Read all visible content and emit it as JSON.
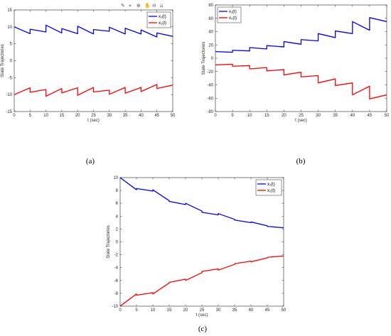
{
  "chart_data": [
    {
      "type": "line",
      "panel_label": "(a)",
      "xlabel": "t (sec)",
      "ylabel": "State Trajectories",
      "xlim": [
        0,
        50
      ],
      "ylim": [
        -15,
        15
      ],
      "xticks": [
        0,
        5,
        10,
        15,
        20,
        25,
        30,
        35,
        40,
        45,
        50
      ],
      "yticks": [
        -15,
        -10,
        -5,
        0,
        5,
        10,
        15
      ],
      "grid": false,
      "legend_position": "top-right",
      "series": [
        {
          "name": "x₁(t)",
          "color": "#0000ff",
          "x": [
            0,
            5,
            5,
            10,
            10,
            15,
            15,
            20,
            20,
            25,
            25,
            30,
            30,
            35,
            35,
            40,
            40,
            45,
            45,
            50
          ],
          "y": [
            10,
            8,
            9.3,
            8.5,
            10.5,
            8.2,
            9.5,
            8,
            10.2,
            7.9,
            9.2,
            8.7,
            9.9,
            7.9,
            9.6,
            7.9,
            9.1,
            7,
            8.2,
            7.2
          ]
        },
        {
          "name": "x₂(t)",
          "color": "#ff0000",
          "x": [
            0,
            5,
            5,
            10,
            10,
            15,
            15,
            20,
            20,
            25,
            25,
            30,
            30,
            35,
            35,
            40,
            40,
            45,
            45,
            50
          ],
          "y": [
            -10,
            -8,
            -9.3,
            -8.5,
            -10.5,
            -8.2,
            -9.5,
            -8,
            -10.2,
            -7.9,
            -9.2,
            -8.7,
            -9.9,
            -7.9,
            -9.6,
            -7.9,
            -9.1,
            -7,
            -8.2,
            -7.2
          ]
        }
      ]
    },
    {
      "type": "line",
      "panel_label": "(b)",
      "xlabel": "t (sec)",
      "ylabel": "State Trajectories",
      "xlim": [
        0,
        50
      ],
      "ylim": [
        -80,
        80
      ],
      "xticks": [
        0,
        5,
        10,
        15,
        20,
        25,
        30,
        35,
        40,
        45,
        50
      ],
      "yticks": [
        -80,
        -60,
        -40,
        -20,
        0,
        20,
        40,
        60,
        80
      ],
      "grid": false,
      "legend_position": "top-left",
      "series": [
        {
          "name": "x₁(t)",
          "color": "#0000ff",
          "x": [
            0,
            5,
            5,
            10,
            10,
            15,
            15,
            20,
            20,
            25,
            25,
            30,
            30,
            35,
            35,
            40,
            40,
            45,
            45,
            50
          ],
          "y": [
            10,
            9,
            12,
            11,
            16,
            14,
            19,
            17,
            25,
            21,
            28,
            26,
            37,
            31,
            41,
            37,
            55,
            42,
            61,
            55
          ]
        },
        {
          "name": "x₂(t)",
          "color": "#ff0000",
          "x": [
            0,
            5,
            5,
            10,
            10,
            15,
            15,
            20,
            20,
            25,
            25,
            30,
            30,
            35,
            35,
            40,
            40,
            45,
            45,
            50
          ],
          "y": [
            -10,
            -9,
            -12,
            -11,
            -16,
            -14,
            -19,
            -17,
            -25,
            -21,
            -28,
            -26,
            -37,
            -31,
            -41,
            -37,
            -55,
            -42,
            -61,
            -55
          ]
        }
      ]
    },
    {
      "type": "line",
      "panel_label": "(c)",
      "xlabel": "t (sec)",
      "ylabel": "State Trajectories",
      "xlim": [
        0,
        50
      ],
      "ylim": [
        -10,
        10
      ],
      "xticks": [
        0,
        5,
        10,
        15,
        20,
        25,
        30,
        35,
        40,
        45,
        50
      ],
      "yticks": [
        -10,
        -8,
        -6,
        -4,
        -2,
        0,
        2,
        4,
        6,
        8,
        10
      ],
      "grid": false,
      "legend_position": "top-right",
      "series": [
        {
          "name": "x₁(t)",
          "color": "#0000ff",
          "x": [
            0,
            5,
            5,
            10,
            10,
            15,
            15,
            20,
            20,
            25,
            25,
            30,
            30,
            35,
            35,
            40,
            40,
            45,
            45,
            50
          ],
          "y": [
            10,
            8.1,
            8.3,
            7.9,
            8.1,
            6.4,
            6.3,
            5.8,
            6.0,
            4.8,
            4.6,
            4.2,
            4.4,
            3.5,
            3.4,
            3.0,
            3.1,
            2.5,
            2.4,
            2.2
          ]
        },
        {
          "name": "x₂(t)",
          "color": "#ff0000",
          "x": [
            0,
            5,
            5,
            10,
            10,
            15,
            15,
            20,
            20,
            25,
            25,
            30,
            30,
            35,
            35,
            40,
            40,
            45,
            45,
            50
          ],
          "y": [
            -10,
            -8.1,
            -8.3,
            -7.9,
            -8.1,
            -6.4,
            -6.3,
            -5.8,
            -6.0,
            -4.8,
            -4.6,
            -4.2,
            -4.4,
            -3.5,
            -3.4,
            -3.0,
            -3.1,
            -2.5,
            -2.4,
            -2.2
          ]
        }
      ]
    }
  ],
  "toolbar_icons": [
    "brush-icon",
    "data-tips-icon",
    "zoom-in-icon",
    "pan-icon",
    "zoom-out-icon",
    "home-icon"
  ]
}
